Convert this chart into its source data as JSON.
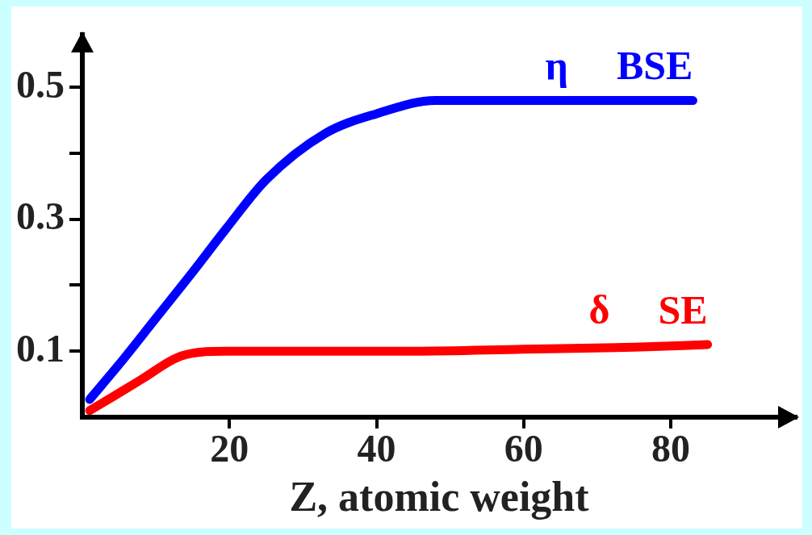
{
  "chart_data": {
    "type": "line",
    "xlabel": "Z, atomic weight",
    "xlim": [
      0,
      97
    ],
    "xticks": [
      20,
      40,
      60,
      80
    ],
    "ylim": [
      0,
      0.58
    ],
    "yticks": [
      0.1,
      {
        "value": 0.2,
        "label": null
      },
      0.3,
      {
        "value": 0.4,
        "label": null
      },
      0.5
    ],
    "grid": false,
    "legend": false,
    "marker": "none",
    "line_style": "solid",
    "series": [
      {
        "name": "BSE",
        "color": "#0000ff",
        "x": [
          1,
          5,
          10,
          15,
          19.5,
          25,
          33,
          40,
          48,
          55,
          65,
          75,
          83
        ],
        "values": [
          0.027,
          0.08,
          0.15,
          0.22,
          0.285,
          0.36,
          0.43,
          0.46,
          0.48,
          0.48,
          0.48,
          0.48,
          0.48
        ]
      },
      {
        "name": "SE",
        "color": "#ff0000",
        "x": [
          1,
          4,
          8,
          13.5,
          19.5,
          30,
          45,
          60,
          75,
          85
        ],
        "values": [
          0.01,
          0.03,
          0.057,
          0.093,
          0.1,
          0.1,
          0.1,
          0.103,
          0.106,
          0.11
        ]
      }
    ],
    "annotations": [
      "η",
      "δ"
    ]
  }
}
